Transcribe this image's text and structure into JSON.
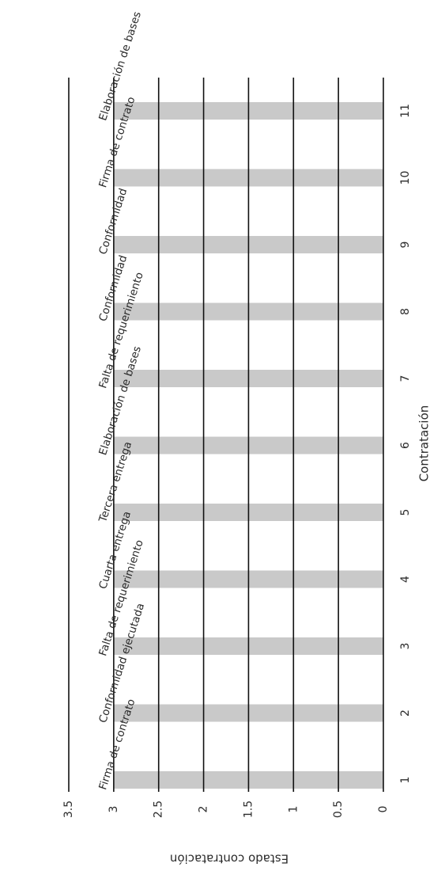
{
  "chart_data": {
    "type": "bar",
    "orientation": "rotated-90",
    "title": "",
    "xlabel": "Contratación",
    "ylabel": "Estado contratación",
    "categories": [
      "1",
      "2",
      "3",
      "4",
      "5",
      "6",
      "7",
      "8",
      "9",
      "10",
      "11"
    ],
    "values": [
      3,
      3,
      3,
      3,
      3,
      3,
      3,
      3,
      3,
      3,
      3
    ],
    "bar_labels": [
      "Firma de contrato",
      "Conformidad ejecutada",
      "Falta de requerimiento",
      "Cuarta entrega",
      "Tercera entrega",
      "Elaboración de bases",
      "Falta de requerimiento",
      "Conformidad",
      "Conformidad",
      "Firma de contrato",
      "Elaboración de bases"
    ],
    "ylim": [
      0,
      3.5
    ],
    "yticks": [
      "0",
      "0.5",
      "1",
      "1.5",
      "2",
      "2.5",
      "3",
      "3.5"
    ],
    "grid": true,
    "legend": "none",
    "colors": {
      "bar": "#c9c9c9",
      "grid": "#111111",
      "text": "#2b2b2b"
    }
  }
}
